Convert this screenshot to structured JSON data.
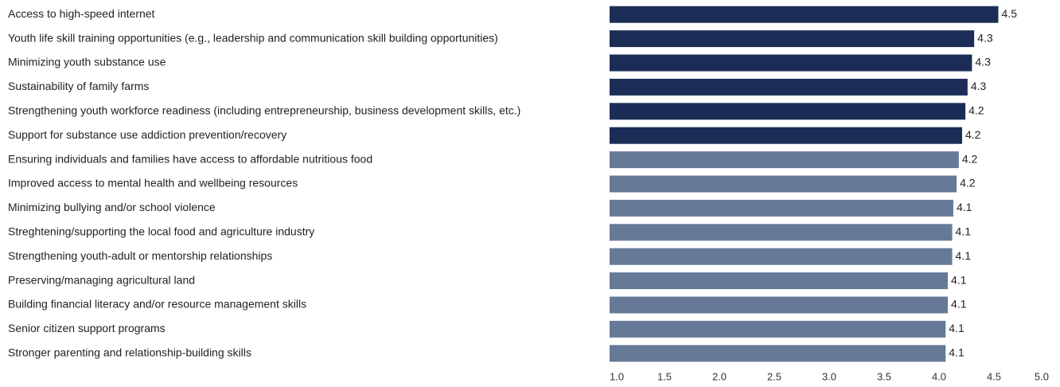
{
  "chart_data": {
    "type": "bar",
    "orientation": "horizontal",
    "categories": [
      "Access to high-speed internet",
      "Youth life skill training opportunities (e.g., leadership and communication skill building opportunities)",
      "Minimizing youth substance use",
      "Sustainability of family farms",
      "Strengthening youth workforce readiness (including entrepreneurship, business development skills, etc.)",
      "Support for substance use addiction prevention/recovery",
      "Ensuring individuals and families have access to affordable nutritious food",
      "Improved access to mental health and wellbeing resources",
      "Minimizing bullying and/or school violence",
      "Streghtening/supporting the local food and agriculture industry",
      "Strengthening youth-adult or mentorship relationships",
      "Preserving/managing agricultural land",
      "Building financial literacy and/or resource management skills",
      "Senior citizen support programs",
      "Stronger parenting and relationship-building skills"
    ],
    "values": [
      4.54,
      4.32,
      4.3,
      4.26,
      4.24,
      4.21,
      4.18,
      4.16,
      4.13,
      4.12,
      4.12,
      4.08,
      4.08,
      4.06,
      4.06
    ],
    "value_labels": [
      "4.5",
      "4.3",
      "4.3",
      "4.3",
      "4.2",
      "4.2",
      "4.2",
      "4.2",
      "4.1",
      "4.1",
      "4.1",
      "4.1",
      "4.1",
      "4.1",
      "4.1"
    ],
    "colors": [
      "#1b2d57",
      "#1b2d57",
      "#1b2d57",
      "#1b2d57",
      "#1b2d57",
      "#1b2d57",
      "#667a98",
      "#667a98",
      "#667a98",
      "#667a98",
      "#667a98",
      "#667a98",
      "#667a98",
      "#667a98",
      "#667a98"
    ],
    "xlim": [
      1,
      5
    ],
    "xticks": [
      {
        "value": 1,
        "label": "1.0"
      },
      {
        "value": 1.5,
        "label": "1.5"
      },
      {
        "value": 2,
        "label": "2.0"
      },
      {
        "value": 2.5,
        "label": "2.5"
      },
      {
        "value": 3,
        "label": "3.0"
      },
      {
        "value": 3.5,
        "label": "3.5"
      },
      {
        "value": 4,
        "label": "4.0"
      },
      {
        "value": 4.5,
        "label": "4.5"
      },
      {
        "value": 5,
        "label": "5.0"
      }
    ],
    "grid": false
  }
}
